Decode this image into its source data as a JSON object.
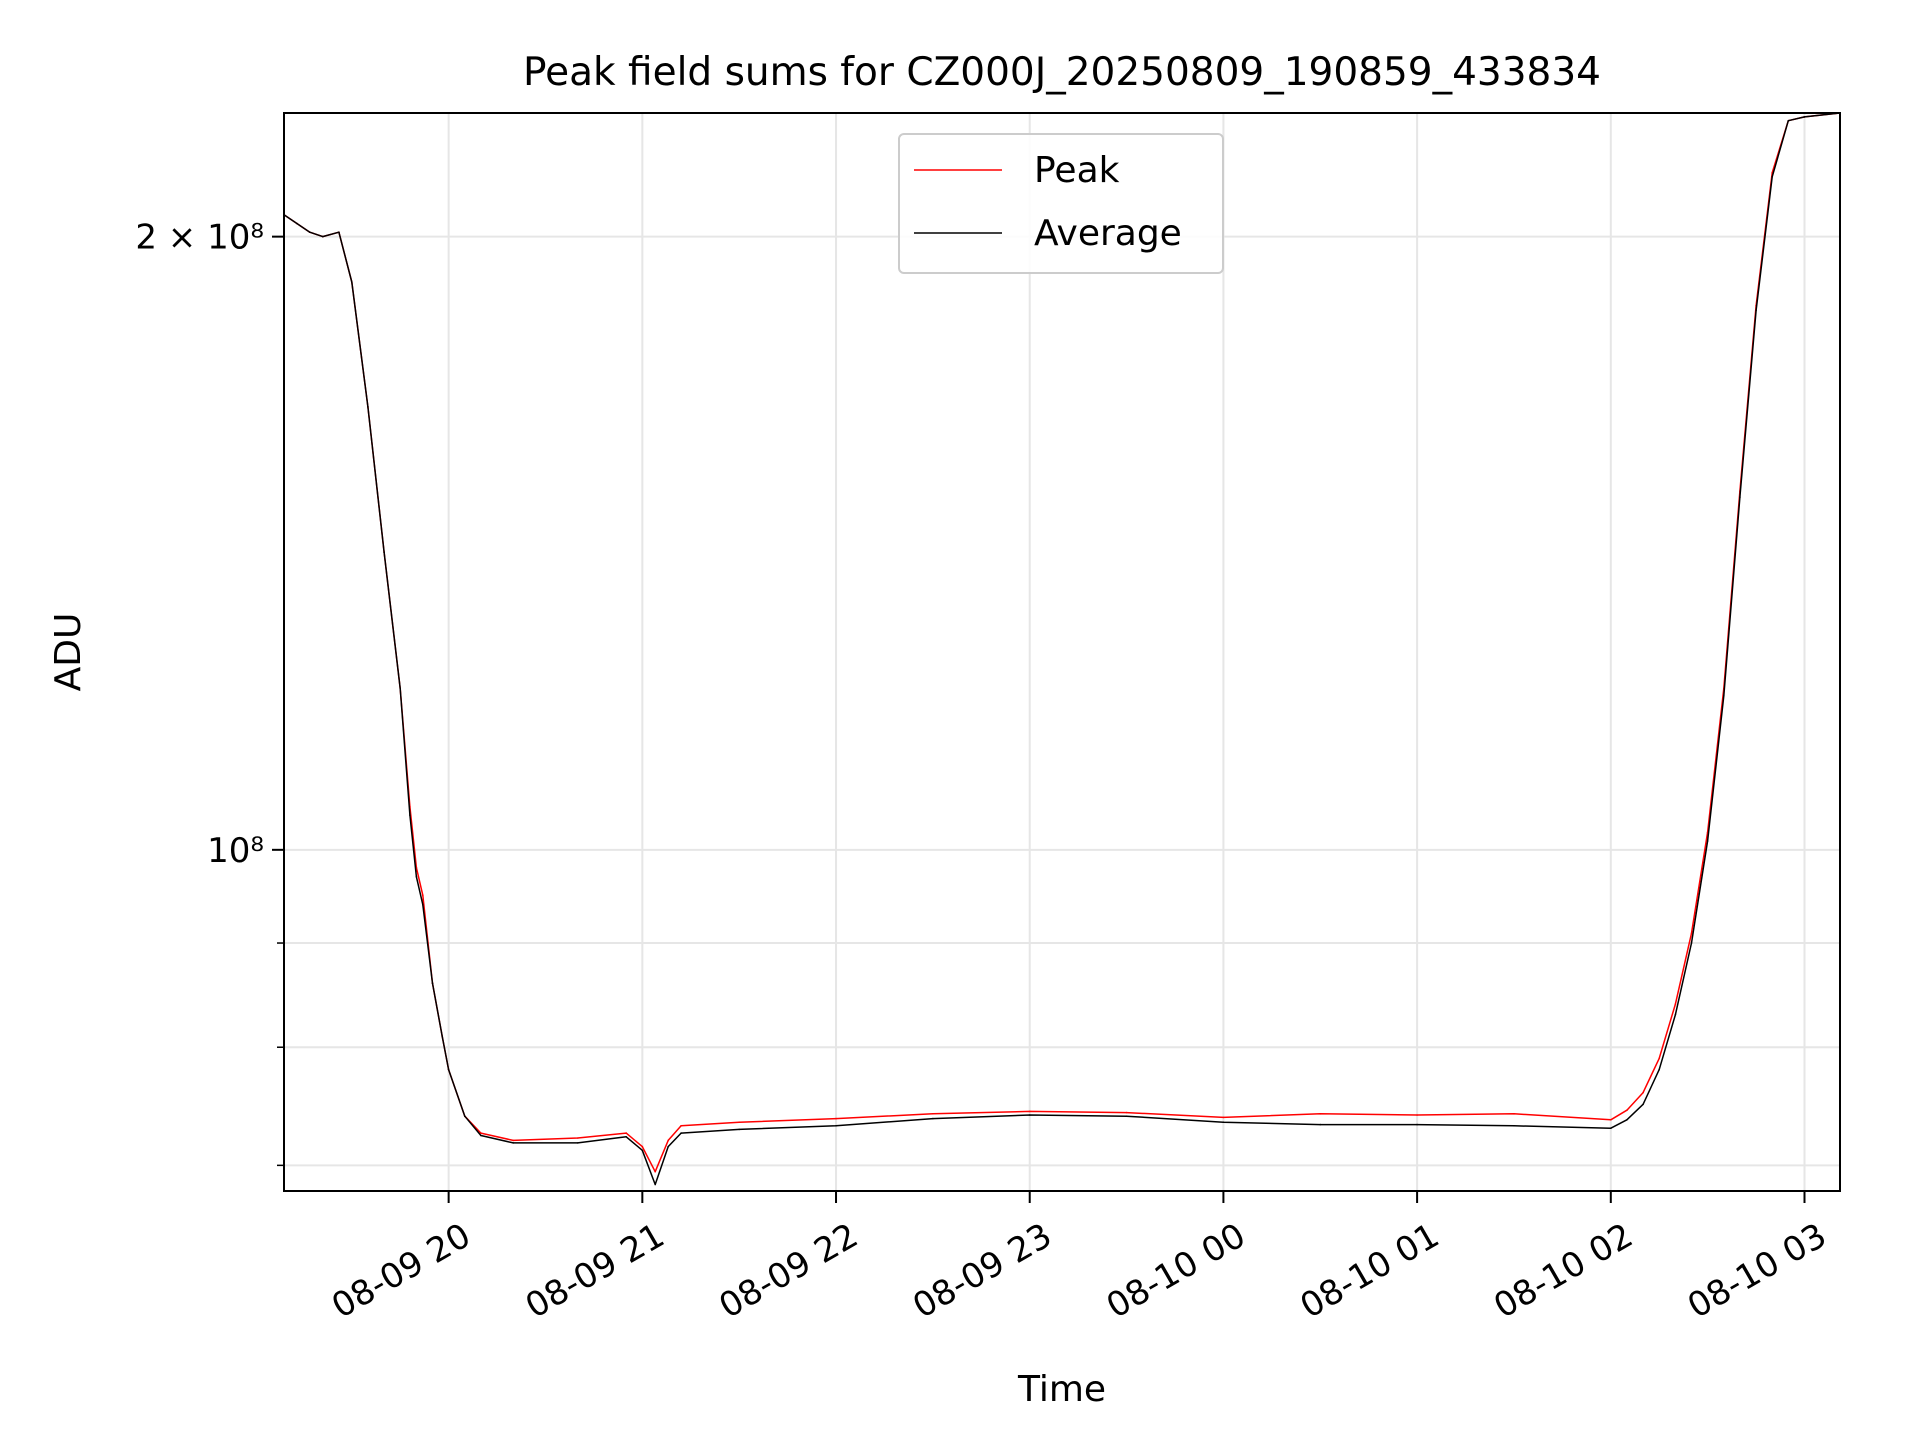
{
  "chart_data": {
    "type": "line",
    "title": "Peak field sums for CZ000J_20250809_190859_433834",
    "xlabel": "Time",
    "ylabel": "ADU",
    "yscale": "log",
    "xlim": [
      "2025-08-09 19:09",
      "2025-08-10 03:11"
    ],
    "ylim": [
      68000000,
      230000000
    ],
    "x_ticks": [
      {
        "value": "2025-08-09 20:00",
        "label": "08-09 20"
      },
      {
        "value": "2025-08-09 21:00",
        "label": "08-09 21"
      },
      {
        "value": "2025-08-09 22:00",
        "label": "08-09 22"
      },
      {
        "value": "2025-08-09 23:00",
        "label": "08-09 23"
      },
      {
        "value": "2025-08-10 00:00",
        "label": "08-10 00"
      },
      {
        "value": "2025-08-10 01:00",
        "label": "08-10 01"
      },
      {
        "value": "2025-08-10 02:00",
        "label": "08-10 02"
      },
      {
        "value": "2025-08-10 03:00",
        "label": "08-10 03"
      }
    ],
    "y_ticks": [
      {
        "value": 200000000,
        "label": "2 × 10⁸"
      },
      {
        "value": 100000000,
        "label": "10⁸"
      }
    ],
    "y_minor_ticks": [
      90000000,
      80000000,
      70000000
    ],
    "grid": true,
    "legend": "top-center",
    "series": [
      {
        "name": "Peak",
        "color": "#ff0000",
        "points": [
          [
            "2025-08-09 19:09",
            205000000
          ],
          [
            "2025-08-09 19:13",
            203000000
          ],
          [
            "2025-08-09 19:17",
            201000000
          ],
          [
            "2025-08-09 19:21",
            200000000
          ],
          [
            "2025-08-09 19:26",
            201000000
          ],
          [
            "2025-08-09 19:30",
            190000000
          ],
          [
            "2025-08-09 19:35",
            165000000
          ],
          [
            "2025-08-09 19:40",
            140000000
          ],
          [
            "2025-08-09 19:45",
            120000000
          ],
          [
            "2025-08-09 19:48",
            105000000
          ],
          [
            "2025-08-09 19:50",
            98000000
          ],
          [
            "2025-08-09 19:52",
            95000000
          ],
          [
            "2025-08-09 19:55",
            86000000
          ],
          [
            "2025-08-09 19:58",
            81000000
          ],
          [
            "2025-08-09 20:00",
            78000000
          ],
          [
            "2025-08-09 20:05",
            74000000
          ],
          [
            "2025-08-09 20:10",
            72600000
          ],
          [
            "2025-08-09 20:20",
            72000000
          ],
          [
            "2025-08-09 20:40",
            72200000
          ],
          [
            "2025-08-09 20:55",
            72600000
          ],
          [
            "2025-08-09 21:00",
            71500000
          ],
          [
            "2025-08-09 21:04",
            69500000
          ],
          [
            "2025-08-09 21:08",
            72000000
          ],
          [
            "2025-08-09 21:12",
            73200000
          ],
          [
            "2025-08-09 21:30",
            73500000
          ],
          [
            "2025-08-09 22:00",
            73800000
          ],
          [
            "2025-08-09 22:30",
            74200000
          ],
          [
            "2025-08-09 23:00",
            74400000
          ],
          [
            "2025-08-09 23:30",
            74300000
          ],
          [
            "2025-08-10 00:00",
            73900000
          ],
          [
            "2025-08-10 00:30",
            74200000
          ],
          [
            "2025-08-10 01:00",
            74100000
          ],
          [
            "2025-08-10 01:30",
            74200000
          ],
          [
            "2025-08-10 02:00",
            73700000
          ],
          [
            "2025-08-10 02:05",
            74500000
          ],
          [
            "2025-08-10 02:10",
            76000000
          ],
          [
            "2025-08-10 02:15",
            79000000
          ],
          [
            "2025-08-10 02:20",
            84000000
          ],
          [
            "2025-08-10 02:25",
            91000000
          ],
          [
            "2025-08-10 02:30",
            102000000
          ],
          [
            "2025-08-10 02:35",
            120000000
          ],
          [
            "2025-08-10 02:40",
            150000000
          ],
          [
            "2025-08-10 02:45",
            185000000
          ],
          [
            "2025-08-10 02:50",
            215000000
          ],
          [
            "2025-08-10 02:55",
            228000000
          ],
          [
            "2025-08-10 03:00",
            229000000
          ],
          [
            "2025-08-10 03:11",
            230000000
          ]
        ]
      },
      {
        "name": "Average",
        "color": "#000000",
        "points": [
          [
            "2025-08-09 19:09",
            205000000
          ],
          [
            "2025-08-09 19:13",
            203000000
          ],
          [
            "2025-08-09 19:17",
            201000000
          ],
          [
            "2025-08-09 19:21",
            200000000
          ],
          [
            "2025-08-09 19:26",
            201000000
          ],
          [
            "2025-08-09 19:30",
            190000000
          ],
          [
            "2025-08-09 19:35",
            165000000
          ],
          [
            "2025-08-09 19:40",
            140000000
          ],
          [
            "2025-08-09 19:45",
            120000000
          ],
          [
            "2025-08-09 19:48",
            104000000
          ],
          [
            "2025-08-09 19:50",
            97000000
          ],
          [
            "2025-08-09 19:52",
            94000000
          ],
          [
            "2025-08-09 19:55",
            86000000
          ],
          [
            "2025-08-09 19:58",
            81000000
          ],
          [
            "2025-08-09 20:00",
            78000000
          ],
          [
            "2025-08-09 20:05",
            74000000
          ],
          [
            "2025-08-09 20:10",
            72400000
          ],
          [
            "2025-08-09 20:20",
            71800000
          ],
          [
            "2025-08-09 20:40",
            71800000
          ],
          [
            "2025-08-09 20:55",
            72300000
          ],
          [
            "2025-08-09 21:00",
            71200000
          ],
          [
            "2025-08-09 21:04",
            68500000
          ],
          [
            "2025-08-09 21:08",
            71500000
          ],
          [
            "2025-08-09 21:12",
            72600000
          ],
          [
            "2025-08-09 21:30",
            72900000
          ],
          [
            "2025-08-09 22:00",
            73200000
          ],
          [
            "2025-08-09 22:30",
            73800000
          ],
          [
            "2025-08-09 23:00",
            74100000
          ],
          [
            "2025-08-09 23:30",
            74000000
          ],
          [
            "2025-08-10 00:00",
            73500000
          ],
          [
            "2025-08-10 00:30",
            73300000
          ],
          [
            "2025-08-10 01:00",
            73300000
          ],
          [
            "2025-08-10 01:30",
            73200000
          ],
          [
            "2025-08-10 02:00",
            73000000
          ],
          [
            "2025-08-10 02:05",
            73700000
          ],
          [
            "2025-08-10 02:10",
            75000000
          ],
          [
            "2025-08-10 02:15",
            78000000
          ],
          [
            "2025-08-10 02:20",
            83000000
          ],
          [
            "2025-08-10 02:25",
            90000000
          ],
          [
            "2025-08-10 02:30",
            101000000
          ],
          [
            "2025-08-10 02:35",
            119000000
          ],
          [
            "2025-08-10 02:40",
            149000000
          ],
          [
            "2025-08-10 02:45",
            184000000
          ],
          [
            "2025-08-10 02:50",
            214000000
          ],
          [
            "2025-08-10 02:55",
            228000000
          ],
          [
            "2025-08-10 03:00",
            229000000
          ],
          [
            "2025-08-10 03:11",
            230000000
          ]
        ]
      }
    ]
  }
}
